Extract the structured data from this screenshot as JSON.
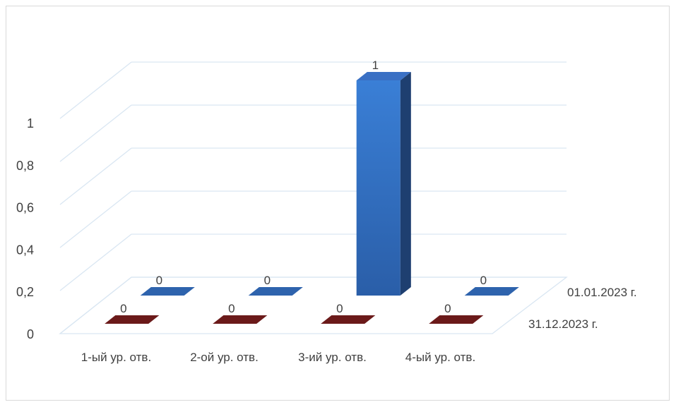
{
  "chart_data": {
    "type": "bar",
    "categories": [
      "1-ый ур. отв.",
      "2-ой ур. отв.",
      "3-ий ур. отв.",
      "4-ый ур. отв."
    ],
    "series": [
      {
        "name": "01.01.2023 г.",
        "values": [
          0,
          0,
          1,
          0
        ],
        "color": "#2e63ad"
      },
      {
        "name": "31.12.2023 г.",
        "values": [
          0,
          0,
          0,
          0
        ],
        "color": "#6b1a1a"
      }
    ],
    "y_ticks": [
      "0",
      "0,2",
      "0,4",
      "0,6",
      "0,8",
      "1"
    ],
    "ylim": [
      0,
      1
    ],
    "grid": true,
    "style": "3d-bar"
  }
}
